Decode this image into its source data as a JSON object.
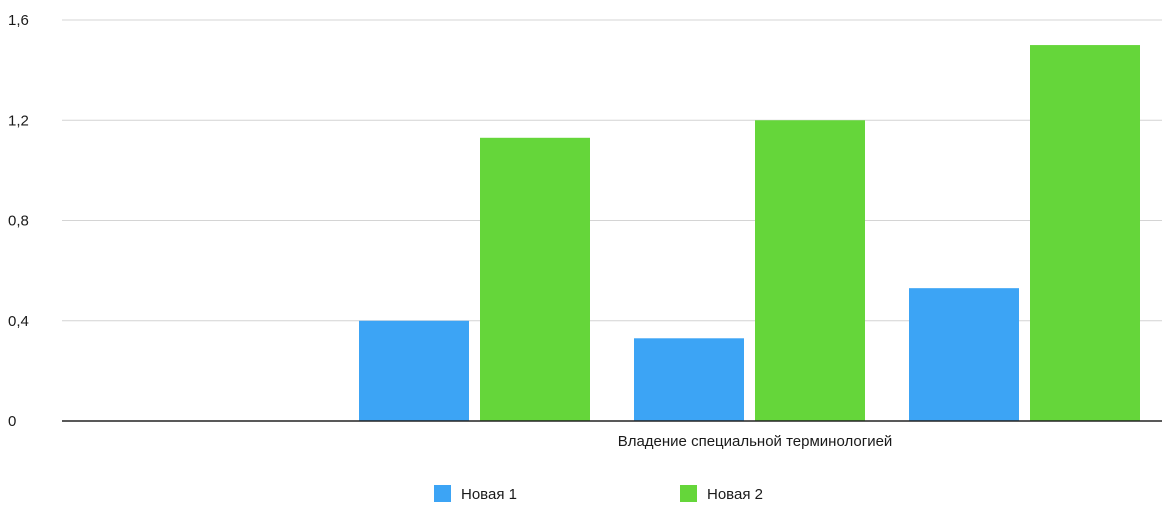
{
  "chart_data": {
    "type": "bar",
    "title": "",
    "xlabel": "",
    "ylabel": "",
    "categories": [
      "",
      "",
      "",
      "Владение специальной терминологией"
    ],
    "series": [
      {
        "name": "Новая 1",
        "color": "#3CA4F5",
        "values": [
          null,
          0.4,
          0.33,
          0.53
        ]
      },
      {
        "name": "Новая 2",
        "color": "#65D63A",
        "values": [
          null,
          1.13,
          1.2,
          1.5
        ]
      }
    ],
    "ylim": [
      0,
      1.6
    ],
    "yticks": [
      "0",
      "0,4",
      "0,8",
      "1,2",
      "1,6"
    ],
    "grid": true,
    "legend_position": "bottom-center"
  }
}
